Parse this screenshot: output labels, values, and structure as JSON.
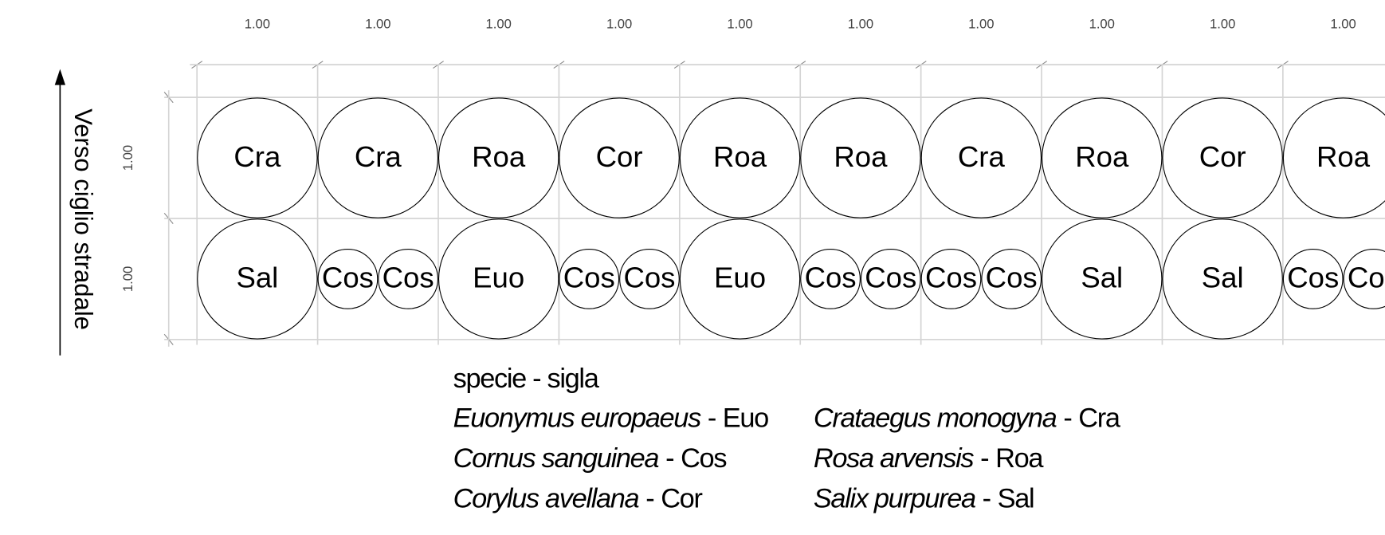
{
  "column_widths": [
    "1.00",
    "1.00",
    "1.00",
    "1.00",
    "1.00",
    "1.00",
    "1.00",
    "1.00",
    "1.00",
    "1.00"
  ],
  "row_heights": [
    "1.00",
    "1.00"
  ],
  "rows": [
    [
      [
        "Cra"
      ],
      [
        "Cra"
      ],
      [
        "Roa"
      ],
      [
        "Cor"
      ],
      [
        "Roa"
      ],
      [
        "Roa"
      ],
      [
        "Cra"
      ],
      [
        "Roa"
      ],
      [
        "Cor"
      ],
      [
        "Roa"
      ]
    ],
    [
      [
        "Sal"
      ],
      [
        "Cos",
        "Cos"
      ],
      [
        "Euo"
      ],
      [
        "Cos",
        "Cos"
      ],
      [
        "Euo"
      ],
      [
        "Cos",
        "Cos"
      ],
      [
        "Cos",
        "Cos"
      ],
      [
        "Sal"
      ],
      [
        "Sal"
      ],
      [
        "Cos",
        "Cos"
      ]
    ]
  ],
  "axis_label": "Verso  ciglio  stradale",
  "legend": {
    "title": "specie - sigla",
    "separator": "-",
    "columns": [
      [
        {
          "name": "Euonymus europaeus",
          "code": "Euo"
        },
        {
          "name": "Cornus sanguinea",
          "code": "Cos"
        },
        {
          "name": "Corylus avellana",
          "code": "Cor"
        }
      ],
      [
        {
          "name": "Crataegus monogyna",
          "code": "Cra"
        },
        {
          "name": "Rosa arvensis",
          "code": "Roa"
        },
        {
          "name": "Salix purpurea",
          "code": "Sal"
        }
      ]
    ]
  }
}
